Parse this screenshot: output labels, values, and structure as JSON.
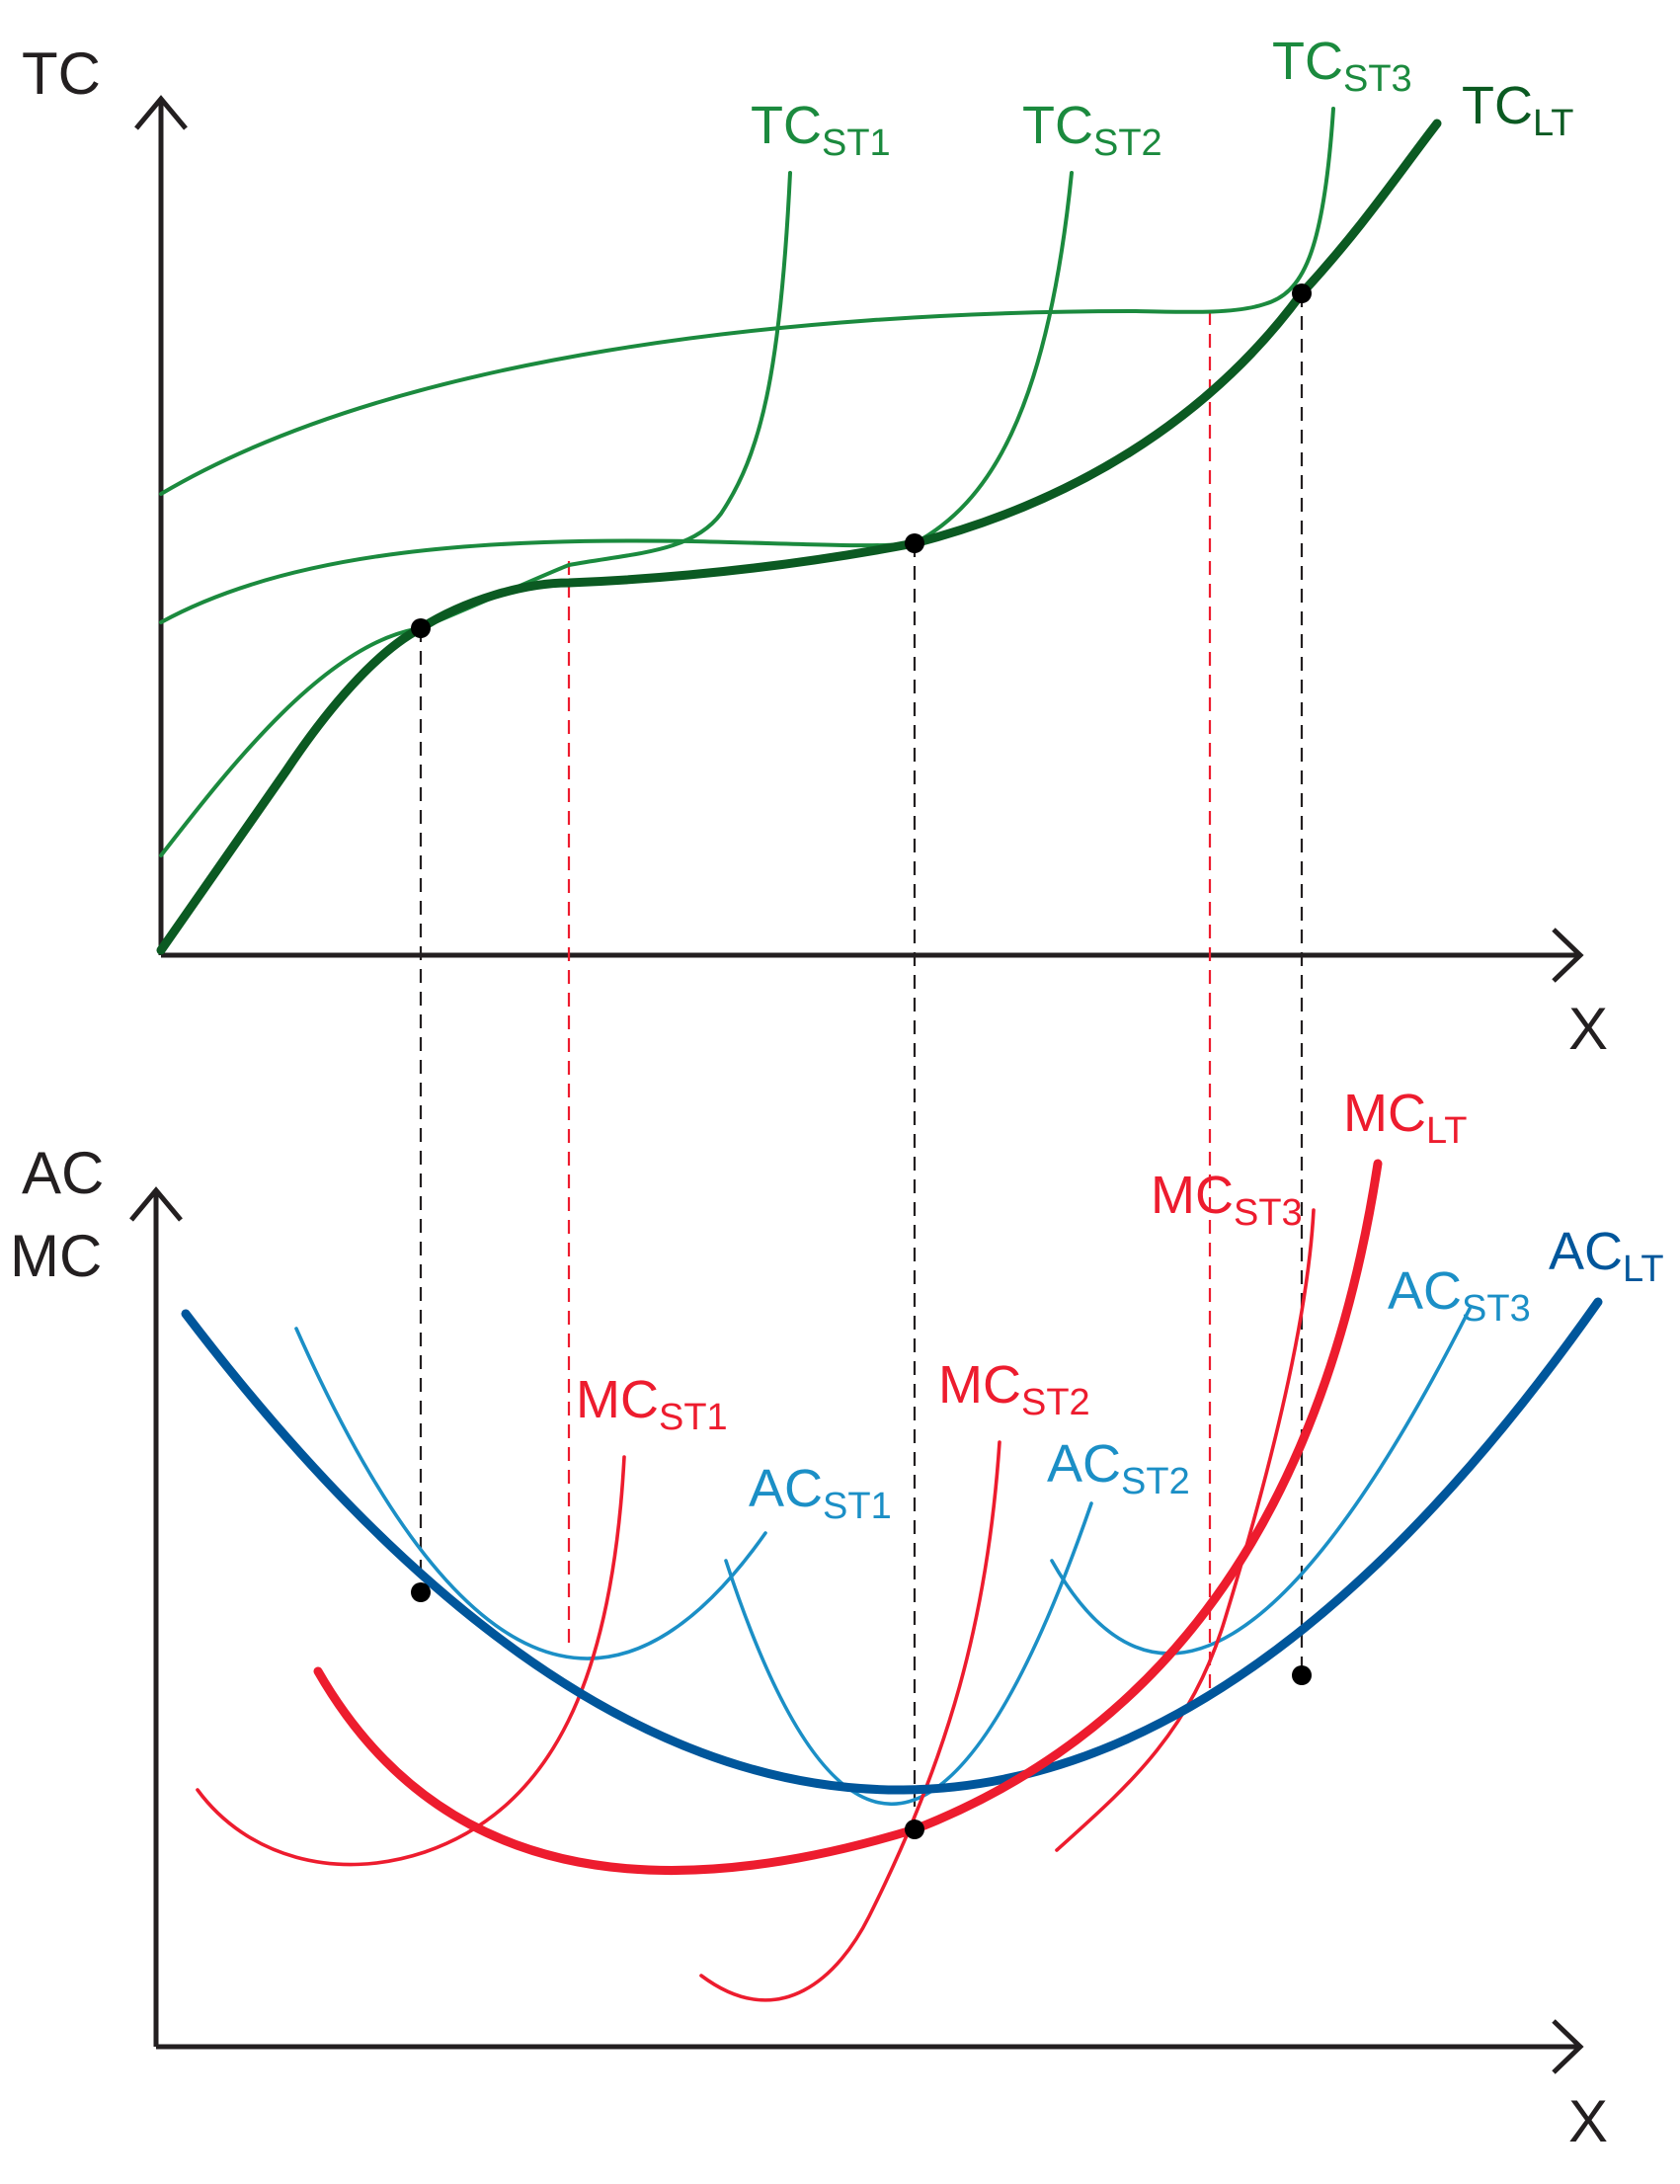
{
  "top_panel": {
    "y_axis_label": "TC",
    "x_axis_label": "X",
    "curves": [
      {
        "id": "tc-st1",
        "label": "TC",
        "subscript": "ST1",
        "color": "#1b8a3e"
      },
      {
        "id": "tc-st2",
        "label": "TC",
        "subscript": "ST2",
        "color": "#1b8a3e"
      },
      {
        "id": "tc-st3",
        "label": "TC",
        "subscript": "ST3",
        "color": "#1b8a3e"
      },
      {
        "id": "tc-lt",
        "label": "TC",
        "subscript": "LT",
        "color": "#0b5a22"
      }
    ]
  },
  "bottom_panel": {
    "y_axis_label_line1": "AC",
    "y_axis_label_line2": "MC",
    "x_axis_label": "X",
    "curves": [
      {
        "id": "mc-st1",
        "label": "MC",
        "subscript": "ST1",
        "color": "#ed1c2e"
      },
      {
        "id": "ac-st1",
        "label": "AC",
        "subscript": "ST1",
        "color": "#1b8fc6"
      },
      {
        "id": "mc-st2",
        "label": "MC",
        "subscript": "ST2",
        "color": "#ed1c2e"
      },
      {
        "id": "ac-st2",
        "label": "AC",
        "subscript": "ST2",
        "color": "#1b8fc6"
      },
      {
        "id": "mc-st3",
        "label": "MC",
        "subscript": "ST3",
        "color": "#ed1c2e"
      },
      {
        "id": "ac-st3",
        "label": "AC",
        "subscript": "ST3",
        "color": "#1b8fc6"
      },
      {
        "id": "mc-lt",
        "label": "MC",
        "subscript": "LT",
        "color": "#ed1c2e"
      },
      {
        "id": "ac-lt",
        "label": "AC",
        "subscript": "LT",
        "color": "#00569b"
      }
    ]
  },
  "colors": {
    "axis": "#231f20",
    "guide_black": "#231f20",
    "guide_red": "#ed1c2e"
  }
}
